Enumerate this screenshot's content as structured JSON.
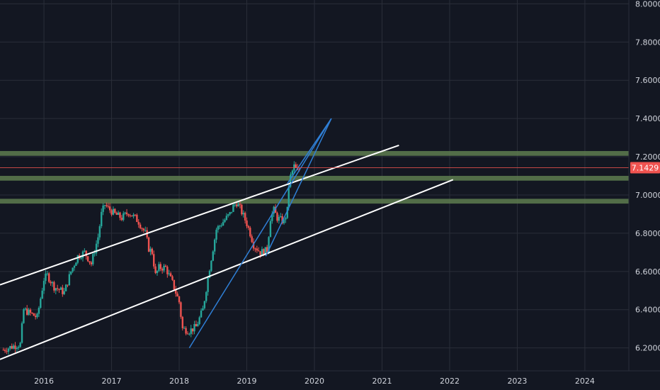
{
  "colors": {
    "background": "#131722",
    "grid": "#2a2e39",
    "axis_text": "#d1d4dc",
    "candle_up": "#26a69a",
    "candle_down": "#ef5350",
    "zone": "#5e7d4f",
    "trend_white": "#ffffff",
    "trend_blue": "#2f7fd6",
    "price_line": "#ef5350"
  },
  "chart_data": {
    "type": "candlestick",
    "x_ticks": [
      "2016",
      "2017",
      "2018",
      "2019",
      "2020",
      "2021",
      "2022",
      "2023",
      "2024"
    ],
    "y_ticks": [
      "6.2000",
      "6.4000",
      "6.6000",
      "6.8000",
      "7.0000",
      "7.2000",
      "7.4000",
      "7.6000",
      "7.8000",
      "8.0000"
    ],
    "ylim": [
      6.08,
      8.02
    ],
    "xlim": [
      2015.35,
      2024.65
    ],
    "current_price": 7.1429,
    "current_price_label": "7.1429",
    "series": [
      {
        "values": [
          [
            2015.4,
            6.19
          ],
          [
            2015.55,
            6.21
          ],
          [
            2015.65,
            6.22
          ],
          [
            2015.7,
            6.4
          ],
          [
            2015.8,
            6.38
          ],
          [
            2015.9,
            6.36
          ],
          [
            2016.0,
            6.56
          ],
          [
            2016.05,
            6.58
          ],
          [
            2016.15,
            6.52
          ],
          [
            2016.3,
            6.49
          ],
          [
            2016.4,
            6.6
          ],
          [
            2016.5,
            6.68
          ],
          [
            2016.6,
            6.7
          ],
          [
            2016.7,
            6.64
          ],
          [
            2016.8,
            6.78
          ],
          [
            2016.85,
            6.9
          ],
          [
            2016.9,
            6.95
          ],
          [
            2016.95,
            6.93
          ],
          [
            2017.05,
            6.9
          ],
          [
            2017.15,
            6.88
          ],
          [
            2017.25,
            6.91
          ],
          [
            2017.35,
            6.88
          ],
          [
            2017.4,
            6.86
          ],
          [
            2017.5,
            6.8
          ],
          [
            2017.55,
            6.72
          ],
          [
            2017.6,
            6.7
          ],
          [
            2017.65,
            6.58
          ],
          [
            2017.7,
            6.62
          ],
          [
            2017.8,
            6.62
          ],
          [
            2017.9,
            6.54
          ],
          [
            2018.0,
            6.44
          ],
          [
            2018.05,
            6.3
          ],
          [
            2018.15,
            6.29
          ],
          [
            2018.25,
            6.31
          ],
          [
            2018.35,
            6.4
          ],
          [
            2018.45,
            6.62
          ],
          [
            2018.55,
            6.82
          ],
          [
            2018.65,
            6.86
          ],
          [
            2018.75,
            6.9
          ],
          [
            2018.8,
            6.94
          ],
          [
            2018.85,
            6.96
          ],
          [
            2018.9,
            6.93
          ],
          [
            2018.95,
            6.89
          ],
          [
            2019.0,
            6.85
          ],
          [
            2019.05,
            6.8
          ],
          [
            2019.1,
            6.74
          ],
          [
            2019.2,
            6.7
          ],
          [
            2019.3,
            6.71
          ],
          [
            2019.35,
            6.88
          ],
          [
            2019.4,
            6.92
          ],
          [
            2019.45,
            6.88
          ],
          [
            2019.55,
            6.86
          ],
          [
            2019.6,
            6.92
          ],
          [
            2019.62,
            7.05
          ],
          [
            2019.65,
            7.1
          ],
          [
            2019.7,
            7.15
          ],
          [
            2019.75,
            7.12
          ],
          [
            2019.8,
            7.14
          ]
        ]
      }
    ],
    "zones": [
      {
        "low": 7.205,
        "high": 7.23
      },
      {
        "low": 7.075,
        "high": 7.1
      },
      {
        "low": 6.955,
        "high": 6.98
      }
    ],
    "trendlines": [
      {
        "from": [
          2015.35,
          6.53
        ],
        "to": [
          2021.25,
          7.26
        ],
        "color": "trend_white"
      },
      {
        "from": [
          2015.35,
          6.14
        ],
        "to": [
          2022.05,
          7.08
        ],
        "color": "trend_white"
      },
      {
        "from": [
          2018.15,
          6.2
        ],
        "to": [
          2020.25,
          7.4
        ],
        "color": "trend_blue"
      },
      {
        "from": [
          2019.28,
          6.68
        ],
        "to": [
          2020.25,
          7.4
        ],
        "color": "trend_blue"
      },
      {
        "from": [
          2019.6,
          7.06
        ],
        "to": [
          2020.25,
          7.4
        ],
        "color": "trend_blue"
      }
    ]
  }
}
